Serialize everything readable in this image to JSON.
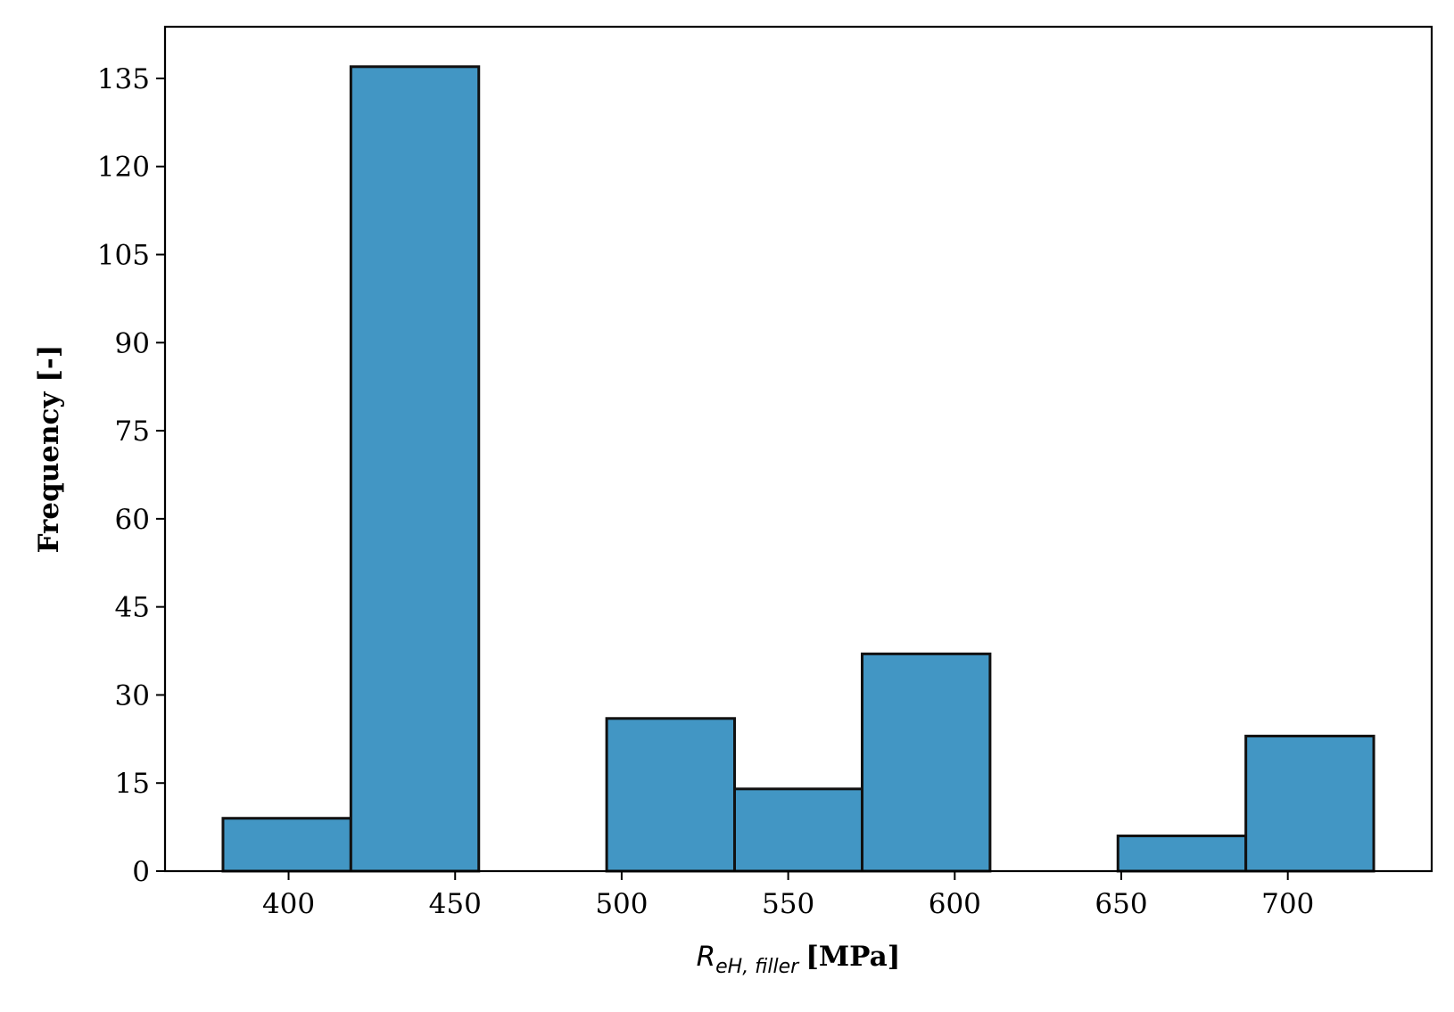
{
  "chart_data": {
    "type": "bar",
    "subtype": "histogram",
    "bins": [
      {
        "start": 380.3,
        "end": 418.7,
        "count": 9
      },
      {
        "start": 418.7,
        "end": 457.1,
        "count": 137
      },
      {
        "start": 457.1,
        "end": 495.5,
        "count": 0
      },
      {
        "start": 495.5,
        "end": 533.9,
        "count": 26
      },
      {
        "start": 533.9,
        "end": 572.2,
        "count": 14
      },
      {
        "start": 572.2,
        "end": 610.6,
        "count": 37
      },
      {
        "start": 610.6,
        "end": 649.0,
        "count": 0
      },
      {
        "start": 649.0,
        "end": 687.4,
        "count": 6
      },
      {
        "start": 687.4,
        "end": 725.8,
        "count": 23
      }
    ],
    "x_ticks": [
      400,
      450,
      500,
      550,
      600,
      650,
      700
    ],
    "x_tick_labels": [
      "400",
      "450",
      "500",
      "550",
      "600",
      "650",
      "700"
    ],
    "y_ticks": [
      0,
      15,
      30,
      45,
      60,
      75,
      90,
      105,
      120,
      135
    ],
    "y_tick_labels": [
      "0",
      "15",
      "30",
      "45",
      "60",
      "75",
      "90",
      "105",
      "120",
      "135"
    ],
    "xlim": [
      362.9,
      743.2
    ],
    "ylim": [
      0,
      143.8
    ],
    "xlabel": {
      "symbol": "R",
      "subscript": "eH, filler",
      "unit": "[MPa]"
    },
    "ylabel": "Frequency [-]",
    "title": "",
    "grid": false,
    "legend": "none",
    "bar_color": "#4296c4",
    "edge_color": "#111111"
  }
}
